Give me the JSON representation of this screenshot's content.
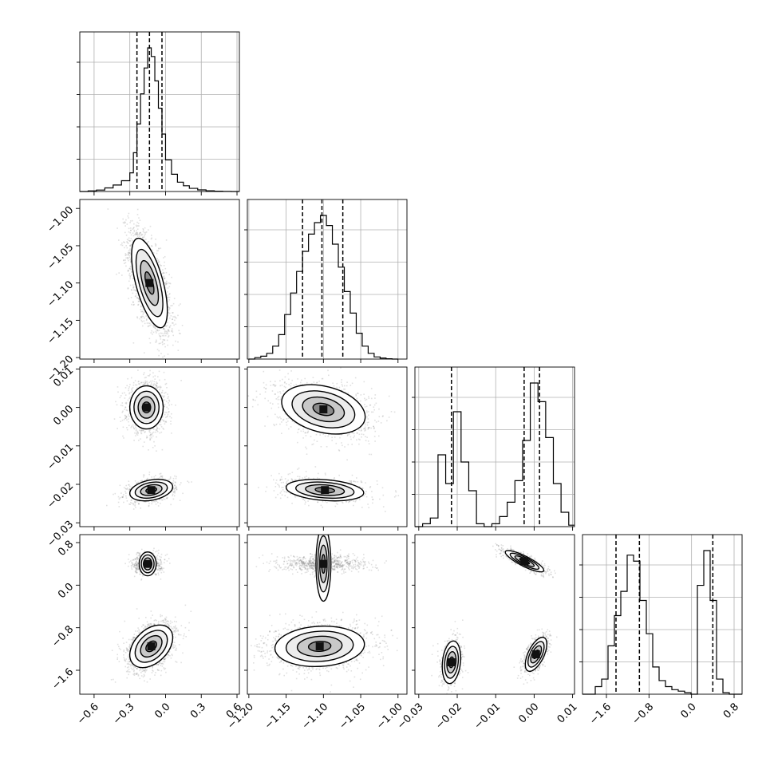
{
  "chart_data": {
    "type": "corner",
    "title": "",
    "parameters": [
      {
        "name": "",
        "range": [
          -0.72,
          0.62
        ],
        "ticks": [
          -0.6,
          -0.3,
          0.0,
          0.3,
          0.6
        ],
        "tick_labels": [
          "−0.6",
          "−0.3",
          "0.0",
          "0.3",
          "0.6"
        ],
        "quantiles": [
          -0.24,
          -0.135,
          -0.03
        ],
        "hist": {
          "edges": [
            -0.72,
            -0.65,
            -0.58,
            -0.51,
            -0.44,
            -0.37,
            -0.3,
            -0.27,
            -0.24,
            -0.21,
            -0.18,
            -0.15,
            -0.12,
            -0.09,
            -0.06,
            -0.03,
            0.0,
            0.05,
            0.1,
            0.15,
            0.2,
            0.27,
            0.34,
            0.41,
            0.48,
            0.55,
            0.62
          ],
          "counts": [
            0.0,
            0.004,
            0.01,
            0.025,
            0.045,
            0.075,
            0.13,
            0.27,
            0.47,
            0.68,
            0.86,
            1.0,
            0.94,
            0.77,
            0.58,
            0.4,
            0.22,
            0.12,
            0.065,
            0.04,
            0.022,
            0.011,
            0.005,
            0.002,
            0.001,
            0.0
          ]
        }
      },
      {
        "name": "",
        "range": [
          -1.202,
          -0.988
        ],
        "ticks": [
          -1.2,
          -1.15,
          -1.1,
          -1.05,
          -1.0
        ],
        "tick_labels": [
          "−1.20",
          "−1.15",
          "−1.10",
          "−1.05",
          "−1.00"
        ],
        "quantiles": [
          -1.128,
          -1.102,
          -1.074
        ],
        "hist": {
          "edges": [
            -1.2,
            -1.192,
            -1.184,
            -1.176,
            -1.168,
            -1.16,
            -1.152,
            -1.144,
            -1.136,
            -1.128,
            -1.12,
            -1.112,
            -1.104,
            -1.096,
            -1.088,
            -1.08,
            -1.072,
            -1.064,
            -1.056,
            -1.048,
            -1.04,
            -1.032,
            -1.024,
            -1.016,
            -1.008,
            -1.0
          ],
          "counts": [
            0.0,
            0.01,
            0.02,
            0.04,
            0.09,
            0.17,
            0.31,
            0.46,
            0.61,
            0.75,
            0.87,
            0.95,
            1.0,
            0.93,
            0.8,
            0.64,
            0.47,
            0.32,
            0.18,
            0.09,
            0.04,
            0.015,
            0.007,
            0.002,
            0.0
          ]
        }
      },
      {
        "name": "",
        "range": [
          -0.031,
          0.0105
        ],
        "ticks": [
          -0.03,
          -0.02,
          -0.01,
          0.0,
          0.01
        ],
        "tick_labels": [
          "−0.03",
          "−0.02",
          "−0.01",
          "0.00",
          "0.01"
        ],
        "quantiles": [
          -0.0215,
          -0.0026,
          0.0014
        ],
        "hist": {
          "edges": [
            -0.031,
            -0.029,
            -0.027,
            -0.025,
            -0.023,
            -0.021,
            -0.019,
            -0.017,
            -0.015,
            -0.013,
            -0.011,
            -0.009,
            -0.007,
            -0.005,
            -0.003,
            -0.001,
            0.001,
            0.003,
            0.005,
            0.007,
            0.009,
            0.0105
          ],
          "counts": [
            0.0,
            0.02,
            0.06,
            0.5,
            0.3,
            0.8,
            0.45,
            0.25,
            0.02,
            0.0,
            0.02,
            0.07,
            0.17,
            0.32,
            0.6,
            1.0,
            0.87,
            0.62,
            0.3,
            0.1,
            0.01
          ]
        }
      },
      {
        "name": "",
        "range": [
          -2.05,
          0.95
        ],
        "ticks": [
          -1.6,
          -0.8,
          0.0,
          0.8
        ],
        "tick_labels": [
          "−1.6",
          "−0.8",
          "0.0",
          "0.8"
        ],
        "quantiles": [
          -1.42,
          -0.98,
          0.4
        ],
        "hist": {
          "edges": [
            -2.05,
            -1.93,
            -1.81,
            -1.69,
            -1.57,
            -1.45,
            -1.33,
            -1.21,
            -1.09,
            -0.97,
            -0.85,
            -0.73,
            -0.61,
            -0.49,
            -0.37,
            -0.25,
            -0.13,
            -0.01,
            0.11,
            0.23,
            0.35,
            0.47,
            0.59,
            0.71,
            0.83,
            0.95
          ],
          "counts": [
            0.0,
            0.0,
            0.05,
            0.1,
            0.32,
            0.52,
            0.68,
            0.92,
            0.88,
            0.62,
            0.4,
            0.18,
            0.09,
            0.05,
            0.03,
            0.02,
            0.01,
            0.0,
            0.72,
            0.95,
            0.62,
            0.1,
            0.01,
            0.0,
            0.0
          ]
        }
      }
    ],
    "hist_grid": true,
    "levels_sigma": [
      0.5,
      1.0,
      1.5,
      2.0
    ],
    "joint": [
      {
        "row": 1,
        "col": 0,
        "modes": [
          {
            "mean": [
              -0.135,
              -1.1
            ],
            "sd": [
              0.075,
              0.03
            ],
            "rho": -0.62,
            "weight": 1.0
          }
        ]
      },
      {
        "row": 2,
        "col": 0,
        "modes": [
          {
            "mean": [
              -0.16,
              0.0
            ],
            "sd": [
              0.07,
              0.0028
            ],
            "rho": 0.0,
            "weight": 0.62
          },
          {
            "mean": [
              -0.12,
              -0.0215
            ],
            "sd": [
              0.09,
              0.0014
            ],
            "rho": 0.3,
            "weight": 0.38
          }
        ]
      },
      {
        "row": 2,
        "col": 1,
        "modes": [
          {
            "mean": [
              -1.1,
              -0.0005
            ],
            "sd": [
              0.028,
              0.0032
            ],
            "rho": -0.3,
            "weight": 0.62
          },
          {
            "mean": [
              -1.098,
              -0.0215
            ],
            "sd": [
              0.026,
              0.0014
            ],
            "rho": -0.25,
            "weight": 0.38
          }
        ]
      },
      {
        "row": 3,
        "col": 0,
        "modes": [
          {
            "mean": [
              -0.15,
              0.4
            ],
            "sd": [
              0.05,
              0.08
            ],
            "rho": 0.0,
            "weight": 0.33
          },
          {
            "mean": [
              -0.12,
              -1.15
            ],
            "sd": [
              0.09,
              0.2
            ],
            "rho": 0.4,
            "weight": 0.67
          }
        ]
      },
      {
        "row": 3,
        "col": 1,
        "modes": [
          {
            "mean": [
              -1.1,
              0.4
            ],
            "sd": [
              0.025,
              0.07
            ],
            "rho": 0.0,
            "weight": 0.33
          },
          {
            "mean": [
              -1.105,
              -1.15
            ],
            "sd": [
              0.03,
              0.19
            ],
            "rho": 0.1,
            "weight": 0.67
          }
        ]
      },
      {
        "row": 3,
        "col": 2,
        "modes": [
          {
            "mean": [
              -0.0025,
              0.45
            ],
            "sd": [
              0.0025,
              0.1
            ],
            "rho": -0.85,
            "weight": 0.33
          },
          {
            "mean": [
              -0.0215,
              -1.45
            ],
            "sd": [
              0.0012,
              0.2
            ],
            "rho": 0.2,
            "weight": 0.3
          },
          {
            "mean": [
              0.0005,
              -1.3
            ],
            "sd": [
              0.0014,
              0.16
            ],
            "rho": 0.6,
            "weight": 0.37
          }
        ]
      }
    ]
  }
}
